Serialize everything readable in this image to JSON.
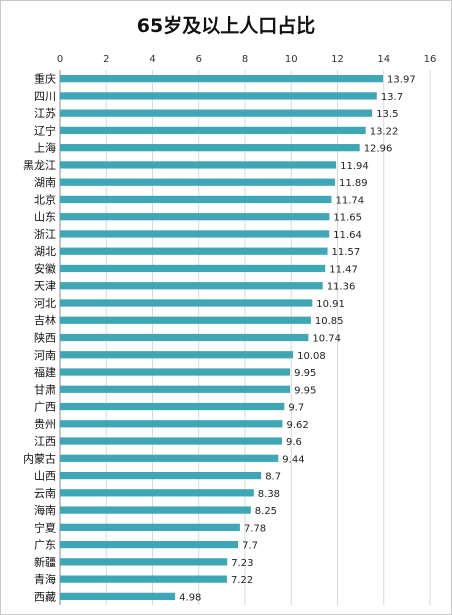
{
  "chart_data": {
    "type": "bar",
    "orientation": "horizontal",
    "title": "65岁及以上人口占比",
    "xlabel": "",
    "ylabel": "",
    "xlim": [
      0,
      16
    ],
    "ticks": [
      "0",
      "2",
      "4",
      "6",
      "8",
      "10",
      "12",
      "14",
      "16"
    ],
    "x_axis_position": "top",
    "grid": true,
    "bar_color": "#3ea6b5",
    "categories": [
      "重庆",
      "四川",
      "江苏",
      "辽宁",
      "上海",
      "黑龙江",
      "湖南",
      "北京",
      "山东",
      "浙江",
      "湖北",
      "安徽",
      "天津",
      "河北",
      "吉林",
      "陕西",
      "河南",
      "福建",
      "甘肃",
      "广西",
      "贵州",
      "江西",
      "内蒙古",
      "山西",
      "云南",
      "海南",
      "宁夏",
      "广东",
      "新疆",
      "青海",
      "西藏"
    ],
    "values": [
      13.97,
      13.7,
      13.5,
      13.22,
      12.96,
      11.94,
      11.89,
      11.74,
      11.65,
      11.64,
      11.57,
      11.47,
      11.36,
      10.91,
      10.85,
      10.74,
      10.08,
      9.95,
      9.95,
      9.7,
      9.62,
      9.6,
      9.44,
      8.7,
      8.38,
      8.25,
      7.78,
      7.7,
      7.23,
      7.22,
      4.98
    ],
    "value_labels": [
      "13.97",
      "13.7",
      "13.5",
      "13.22",
      "12.96",
      "11.94",
      "11.89",
      "11.74",
      "11.65",
      "11.64",
      "11.57",
      "11.47",
      "11.36",
      "10.91",
      "10.85",
      "10.74",
      "10.08",
      "9.95",
      "9.95",
      "9.7",
      "9.62",
      "9.6",
      "9.44",
      "8.7",
      "8.38",
      "8.25",
      "7.78",
      "7.7",
      "7.23",
      "7.22",
      "4.98"
    ]
  }
}
